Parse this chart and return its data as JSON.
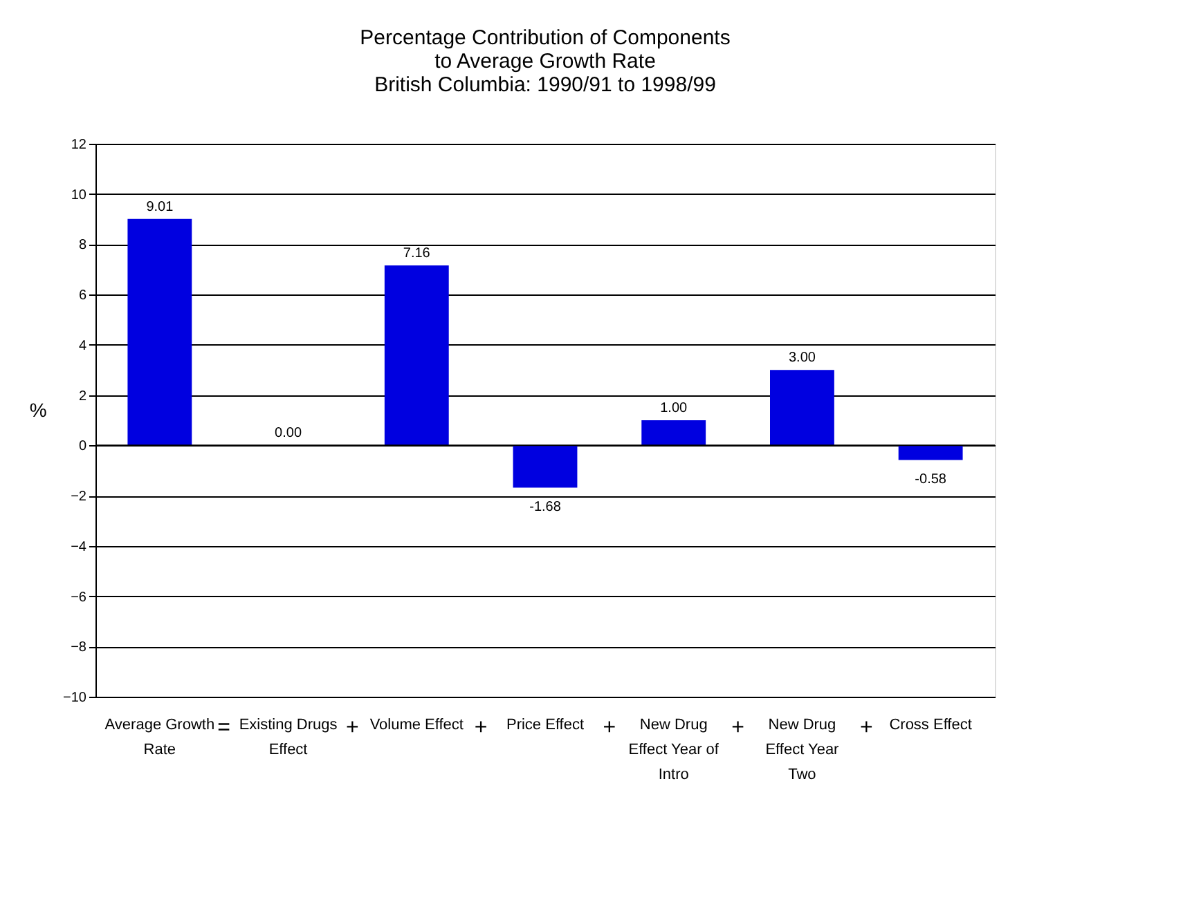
{
  "chart_data": {
    "type": "bar",
    "title": [
      "Percentage Contribution of Components",
      "to Average Growth Rate",
      "British Columbia: 1990/91 to 1998/99"
    ],
    "ylabel": "%",
    "categories": [
      "Average Growth Rate",
      "Existing Drugs Effect",
      "Volume Effect",
      "Price Effect",
      "New Drug Effect Year of Intro",
      "New Drug Effect Year Two",
      "Cross Effect"
    ],
    "values": [
      9.01,
      0.0,
      7.16,
      -1.68,
      1.0,
      3.0,
      -0.58
    ],
    "value_labels": [
      "9.01",
      "0.00",
      "7.16",
      "-1.68",
      "1.00",
      "3.00",
      "-0.58"
    ],
    "color": "#0000e0",
    "ylim": [
      -10,
      12
    ],
    "yticks": [
      -10,
      -8,
      -6,
      -4,
      -2,
      0,
      2,
      4,
      6,
      8,
      10,
      12
    ],
    "grid": "y",
    "annotations": [
      "=",
      "+",
      "+",
      "+",
      "+",
      "+"
    ]
  }
}
